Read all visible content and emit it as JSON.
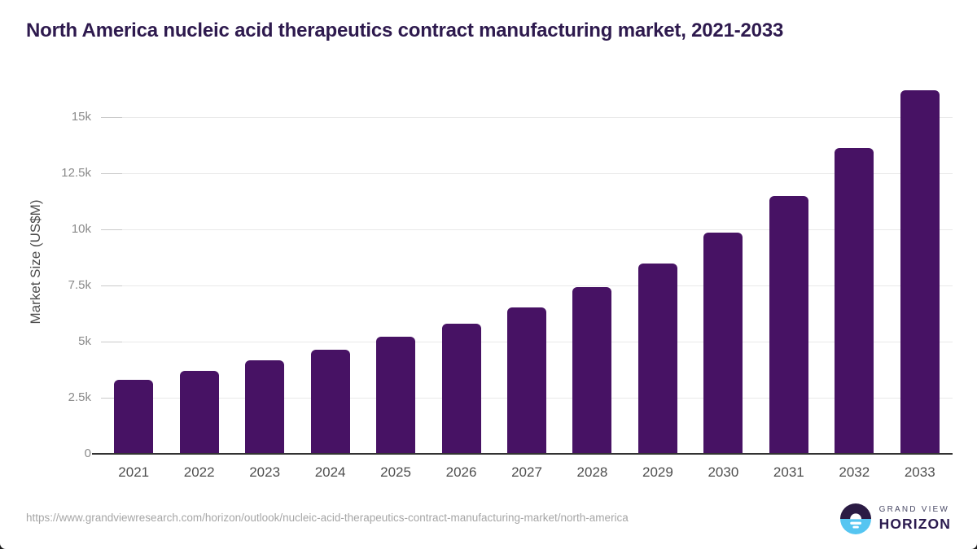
{
  "header": {
    "title": "North America nucleic acid therapeutics contract manufacturing market, 2021-2033"
  },
  "chart_data": {
    "type": "bar",
    "title": "North America nucleic acid therapeutics contract manufacturing market, 2021-2033",
    "categories": [
      "2021",
      "2022",
      "2023",
      "2024",
      "2025",
      "2026",
      "2027",
      "2028",
      "2029",
      "2030",
      "2031",
      "2032",
      "2033"
    ],
    "values": [
      3300,
      3690,
      4170,
      4640,
      5200,
      5800,
      6510,
      7430,
      8490,
      9850,
      11490,
      13620,
      16180
    ],
    "unit": "US$M",
    "xlabel": "",
    "ylabel": "Market Size (US$M)",
    "ylim": [
      0,
      16580
    ],
    "yticks": {
      "values": [
        0,
        2500,
        5000,
        7500,
        10000,
        12500,
        15000
      ],
      "labels": [
        "0",
        "2.5k",
        "5k",
        "7.5k",
        "10k",
        "12.5k",
        "15k"
      ]
    },
    "grid": true,
    "legend": false,
    "bar_color": "#471264"
  },
  "footer": {
    "url": "https://www.grandviewresearch.com/horizon/outlook/nucleic-acid-therapeutics-contract-manufacturing-market/north-america",
    "logo": {
      "line1": "GRAND VIEW",
      "line2": "HORIZON",
      "icon": "horizon-sun-icon"
    }
  },
  "colors": {
    "bar": "#471264",
    "title": "#2e1a4e",
    "grid": "#e9e9e9",
    "tick_mark": "#c9c9c9",
    "axis_line": "#333333",
    "x_label": "#4e4e4e",
    "y_label": "#8a8a8a",
    "y_axis_title": "#4c4c4c",
    "url": "#a6a6a6",
    "logo_dark": "#2b1b44",
    "logo_blue": "#55c5f1"
  }
}
